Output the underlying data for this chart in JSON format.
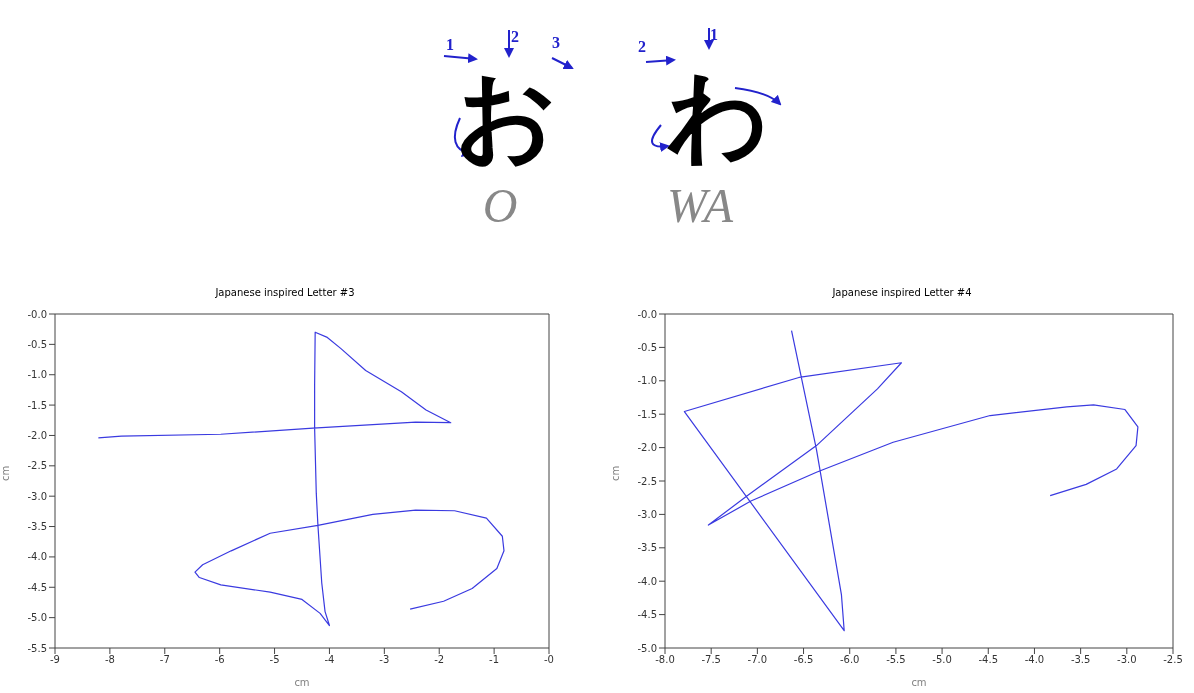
{
  "chart_data": [
    {
      "type": "other",
      "annotations": [
        "1",
        "2",
        "3",
        "お",
        "O",
        "2",
        "1",
        "わ",
        "WA"
      ]
    },
    {
      "type": "line",
      "title": "Japanese inspired Letter #3",
      "xlabel": "cm",
      "ylabel": "cm",
      "series": [
        {
          "color": "#3a3ae0",
          "x": [
            -8.21,
            -7.79,
            -5.98,
            -4.3,
            -2.43,
            -1.79,
            -2.24,
            -2.69,
            -3.34,
            -3.79,
            -4.05,
            -4.26,
            -4.27,
            -4.27,
            -4.24,
            -4.21,
            -4.14,
            -4.08,
            -4.0,
            -4.17,
            -4.5,
            -5.08,
            -5.98,
            -6.37,
            -6.45,
            -6.31,
            -5.79,
            -5.08,
            -4.21,
            -3.21,
            -2.43,
            -1.72,
            -1.14,
            -0.85,
            -0.82,
            -0.95,
            -1.4,
            -1.92,
            -2.53
          ],
          "values": [
            -2.04,
            -2.01,
            -1.98,
            -1.88,
            -1.78,
            -1.79,
            -1.58,
            -1.28,
            -0.93,
            -0.57,
            -0.38,
            -0.3,
            -1.16,
            -1.88,
            -2.95,
            -3.48,
            -4.43,
            -4.9,
            -5.13,
            -4.93,
            -4.7,
            -4.58,
            -4.46,
            -4.34,
            -4.25,
            -4.13,
            -3.9,
            -3.61,
            -3.48,
            -3.3,
            -3.23,
            -3.24,
            -3.36,
            -3.66,
            -3.9,
            -4.19,
            -4.52,
            -4.73,
            -4.86
          ]
        }
      ],
      "xlim": [
        -9,
        0
      ],
      "xticks": [
        -9,
        -8,
        -7,
        -6,
        -5,
        -4,
        -3,
        -2,
        -1,
        {
          "value": 0,
          "label": "-0"
        }
      ],
      "ylim": [
        -5.5,
        0
      ],
      "yticks": [
        {
          "value": 0,
          "label": "-0.0"
        },
        -0.5,
        {
          "value": -1,
          "label": "-1.0"
        },
        -1.5,
        {
          "value": -2,
          "label": "-2.0"
        },
        -2.5,
        {
          "value": -3,
          "label": "-3.0"
        },
        -3.5,
        {
          "value": -4,
          "label": "-4.0"
        },
        -4.5,
        {
          "value": -5,
          "label": "-5.0"
        },
        -5.5
      ],
      "grid": false
    },
    {
      "type": "line",
      "title": "Japanese inspired Letter #4",
      "xlabel": "cm",
      "ylabel": "cm",
      "series": [
        {
          "color": "#3a3ae0",
          "x": [
            -6.63,
            -6.36,
            -6.09,
            -6.06,
            -7.79,
            -6.55,
            -5.44,
            -5.7,
            -6.36,
            -7.11,
            -7.53,
            -7.07,
            -6.36,
            -5.53,
            -4.48,
            -3.65,
            -3.36,
            -3.02,
            -2.88,
            -2.9,
            -3.11,
            -3.44,
            -3.83
          ],
          "values": [
            -0.25,
            -2.03,
            -4.2,
            -4.74,
            -1.46,
            -0.95,
            -0.73,
            -1.12,
            -1.97,
            -2.72,
            -3.16,
            -2.8,
            -2.37,
            -1.92,
            -1.52,
            -1.39,
            -1.36,
            -1.43,
            -1.69,
            -1.97,
            -2.32,
            -2.55,
            -2.72
          ]
        }
      ],
      "xlim": [
        -8,
        -2.5
      ],
      "xticks": [
        {
          "value": -8,
          "label": "-8.0"
        },
        -7.5,
        {
          "value": -7,
          "label": "-7.0"
        },
        -6.5,
        {
          "value": -6,
          "label": "-6.0"
        },
        -5.5,
        {
          "value": -5,
          "label": "-5.0"
        },
        -4.5,
        {
          "value": -4,
          "label": "-4.0"
        },
        -3.5,
        {
          "value": -3,
          "label": "-3.0"
        },
        -2.5
      ],
      "ylim": [
        -5,
        0
      ],
      "yticks": [
        {
          "value": 0,
          "label": "-0.0"
        },
        -0.5,
        {
          "value": -1,
          "label": "-1.0"
        },
        -1.5,
        {
          "value": -2,
          "label": "-2.0"
        },
        -2.5,
        {
          "value": -3,
          "label": "-3.0"
        },
        -3.5,
        {
          "value": -4,
          "label": "-4.0"
        },
        -4.5,
        {
          "value": -5,
          "label": "-5.0"
        }
      ],
      "grid": false
    }
  ]
}
